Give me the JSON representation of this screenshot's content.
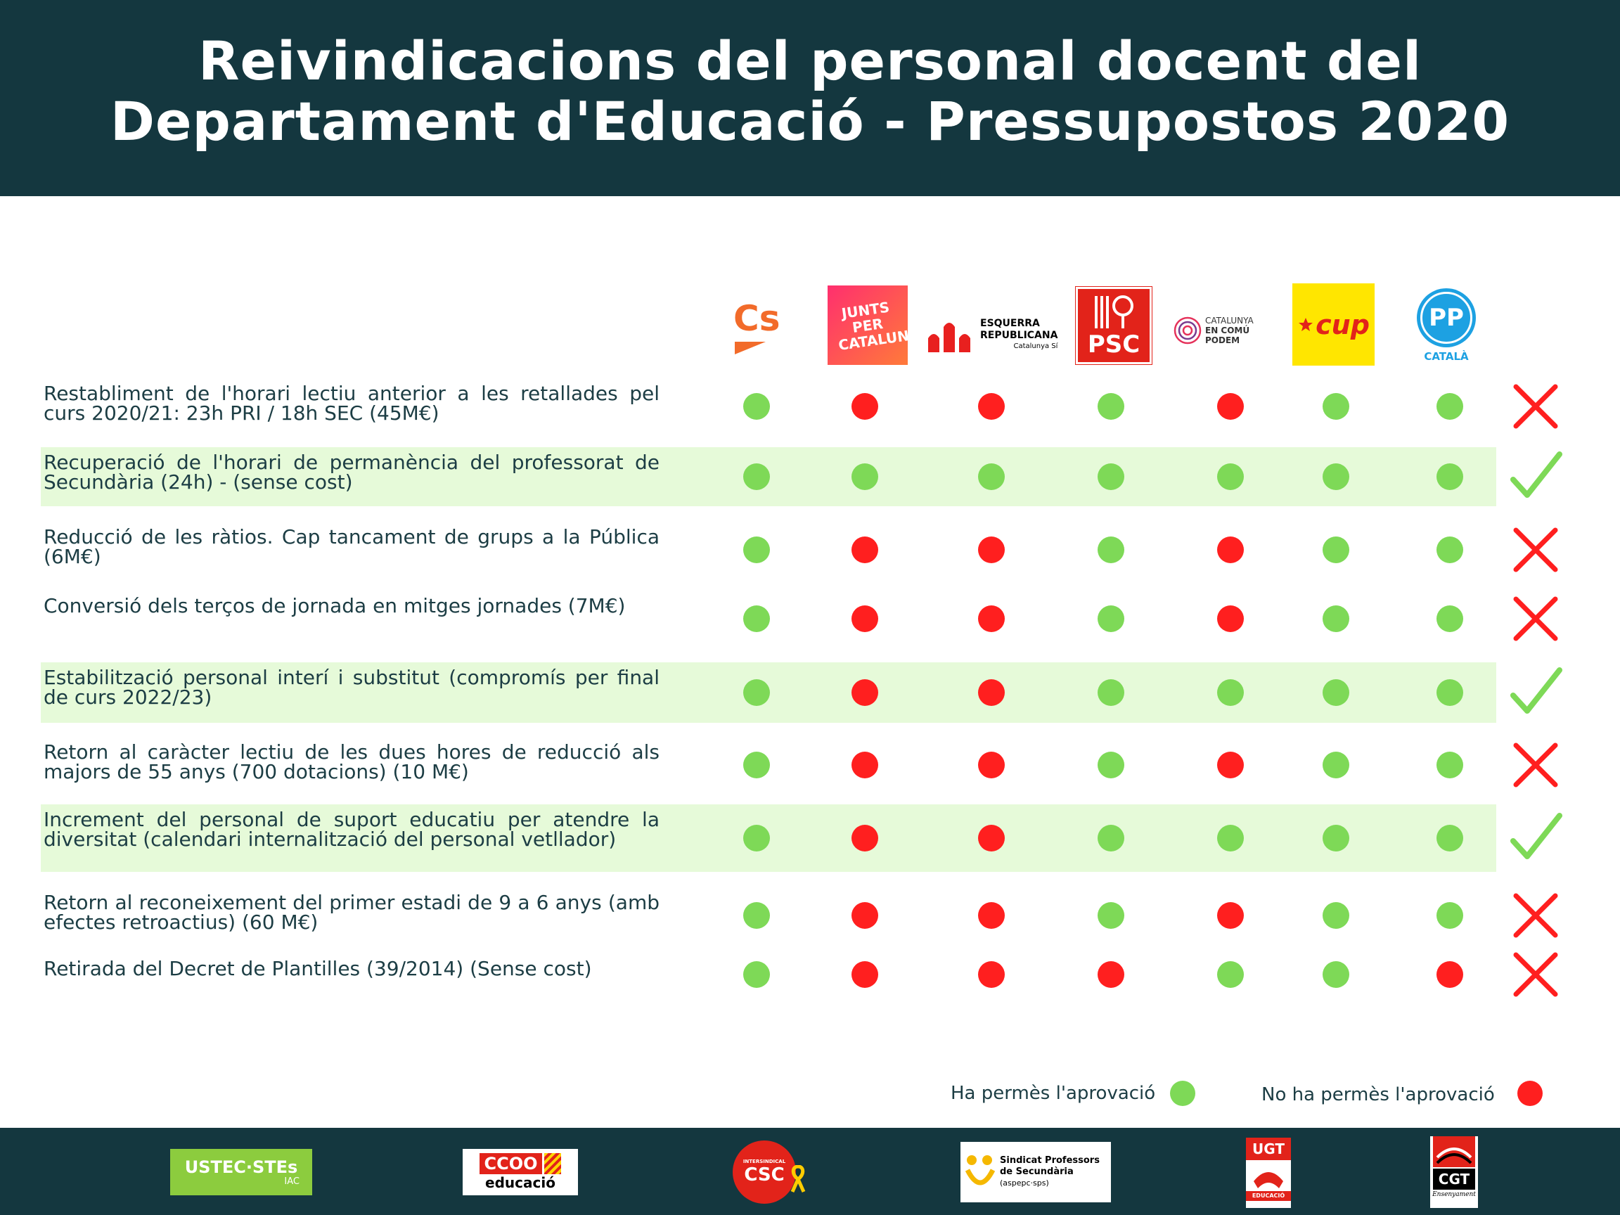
{
  "header": {
    "title_line1": "Reivindicacions del personal docent del",
    "title_line2": "Departament d'Educació - Pressupostos 2020"
  },
  "colors": {
    "header_bg": "#14373f",
    "text": "#1c3d44",
    "row_highlight": "#e6fad9",
    "yes_dot": "#7ed957",
    "no_dot": "#ff1f1f"
  },
  "parties": [
    {
      "id": "cs",
      "label": "Cs"
    },
    {
      "id": "junts",
      "label": "JUNTS PER CATALUNYA"
    },
    {
      "id": "erc",
      "label_line1": "ESQUERRA",
      "label_line2": "REPUBLICANA",
      "label_line3": "Catalunya Sí"
    },
    {
      "id": "psc",
      "label": "PSC"
    },
    {
      "id": "comu",
      "label_line1": "CATALUNYA",
      "label_line2": "EN COMÚ",
      "label_line3": "PODEM"
    },
    {
      "id": "cup",
      "label": "cup"
    },
    {
      "id": "pp",
      "label": "PP",
      "sublabel": "CATALÀ"
    }
  ],
  "rows": [
    {
      "text": "Restabliment de l'horari lectiu anterior a les retallades pel curs 2020/21: 23h PRI / 18h SEC (45M€)",
      "votes": [
        "yes",
        "no",
        "no",
        "yes",
        "no",
        "yes",
        "yes"
      ],
      "verdict": "cross",
      "highlight": false
    },
    {
      "text": "Recuperació de l'horari de permanència del professorat de Secundària (24h) - (sense cost)",
      "votes": [
        "yes",
        "yes",
        "yes",
        "yes",
        "yes",
        "yes",
        "yes"
      ],
      "verdict": "check",
      "highlight": true
    },
    {
      "text": "Reducció de les ràtios. Cap tancament de grups a la Pública (6M€)",
      "votes": [
        "yes",
        "no",
        "no",
        "yes",
        "no",
        "yes",
        "yes"
      ],
      "verdict": "cross",
      "highlight": false
    },
    {
      "text": "Conversió dels terços de jornada en mitges jornades (7M€)",
      "votes": [
        "yes",
        "no",
        "no",
        "yes",
        "no",
        "yes",
        "yes"
      ],
      "verdict": "cross",
      "highlight": false
    },
    {
      "text": "Estabilització personal interí i substitut (compromís per final de curs 2022/23)",
      "votes": [
        "yes",
        "no",
        "no",
        "yes",
        "yes",
        "yes",
        "yes"
      ],
      "verdict": "check",
      "highlight": true
    },
    {
      "text": "Retorn al caràcter lectiu de les dues hores de reducció als majors de 55 anys (700 dotacions) (10 M€)",
      "votes": [
        "yes",
        "no",
        "no",
        "yes",
        "no",
        "yes",
        "yes"
      ],
      "verdict": "cross",
      "highlight": false
    },
    {
      "text": "Increment del personal de suport educatiu per atendre la diversitat (calendari internalització del personal vetllador)",
      "votes": [
        "yes",
        "no",
        "no",
        "yes",
        "yes",
        "yes",
        "yes"
      ],
      "verdict": "check",
      "highlight": true
    },
    {
      "text": "Retorn al reconeixement del primer estadi de 9 a 6 anys (amb efectes retroactius) (60 M€)",
      "votes": [
        "yes",
        "no",
        "no",
        "yes",
        "no",
        "yes",
        "yes"
      ],
      "verdict": "cross",
      "highlight": false
    },
    {
      "text": "Retirada del Decret de Plantilles (39/2014) (Sense cost)",
      "votes": [
        "yes",
        "no",
        "no",
        "no",
        "yes",
        "yes",
        "no"
      ],
      "verdict": "cross",
      "highlight": false
    }
  ],
  "legend": {
    "yes_label": "Ha permès l'aprovació",
    "no_label": "No ha permès l'aprovació"
  },
  "footer_logos": {
    "ustec": {
      "main": "USTEC·STEs",
      "sub": "IAC"
    },
    "ccoo": {
      "main": "CCOO",
      "sub": "educació"
    },
    "csc": {
      "top": "INTERSINDICAL",
      "main": "CSC"
    },
    "aspepc": {
      "line1": "Sindicat Professors",
      "line2": "de Secundària",
      "line3": "(aspepc·sps)"
    },
    "ugt": {
      "main": "UGT",
      "sub": "EDUCACIÓ"
    },
    "cgt": {
      "main": "CGT",
      "sub": "Ensenyament"
    }
  }
}
